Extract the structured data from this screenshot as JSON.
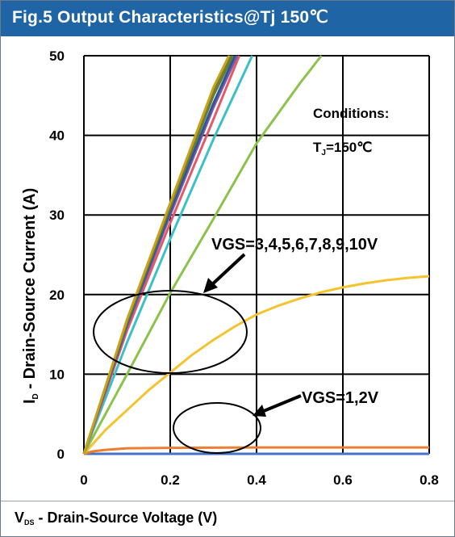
{
  "figure_title": "Fig.5 Output Characteristics@Tj 150℃",
  "chart_data": {
    "type": "line",
    "xlabel": {
      "main": "V",
      "sub": "DS",
      "rest": " - Drain-Source Voltage (V)"
    },
    "ylabel": {
      "main": "I",
      "sub": "D",
      "rest": " - Drain-Source Current (A)"
    },
    "xlim": [
      0,
      0.8
    ],
    "ylim": [
      0,
      50
    ],
    "x_ticks": [
      "0",
      "0.2",
      "0.4",
      "0.6",
      "0.8"
    ],
    "y_ticks": [
      "0",
      "10",
      "20",
      "30",
      "40",
      "50"
    ],
    "grid": true,
    "series": [
      {
        "color": "#4472c4",
        "x": [
          0,
          0.8
        ],
        "y": [
          0,
          0
        ]
      },
      {
        "color": "#ed7d31",
        "x": [
          0,
          0.02,
          0.05,
          0.1,
          0.2,
          0.4,
          0.8
        ],
        "y": [
          0,
          0.3,
          0.5,
          0.7,
          0.75,
          0.8,
          0.8
        ]
      },
      {
        "color": "#f4c430",
        "x": [
          0,
          0.05,
          0.1,
          0.15,
          0.2,
          0.25,
          0.3,
          0.35,
          0.4,
          0.45,
          0.5,
          0.55,
          0.6,
          0.65,
          0.7,
          0.75,
          0.8
        ],
        "y": [
          0,
          3,
          5.5,
          8,
          10.2,
          12.4,
          14.3,
          16,
          17.5,
          18.6,
          19.5,
          20.3,
          20.9,
          21.4,
          21.8,
          22.1,
          22.3
        ]
      },
      {
        "color": "#8bc34a",
        "x": [
          0,
          0.1,
          0.2,
          0.3,
          0.4,
          0.5,
          0.55
        ],
        "y": [
          0,
          10,
          20.2,
          29.5,
          39,
          46.5,
          50
        ]
      },
      {
        "color": "#3cc0c8",
        "x": [
          0,
          0.1,
          0.2,
          0.3,
          0.39
        ],
        "y": [
          0,
          14,
          27,
          39.5,
          50
        ]
      },
      {
        "color": "#e05a6a",
        "x": [
          0,
          0.1,
          0.2,
          0.3,
          0.36
        ],
        "y": [
          0,
          15.5,
          29,
          42,
          50
        ]
      },
      {
        "color": "#7b5aa6",
        "x": [
          0,
          0.1,
          0.2,
          0.3,
          0.355
        ],
        "y": [
          0,
          16,
          30,
          43.5,
          50
        ]
      },
      {
        "color": "#2f5597",
        "x": [
          0,
          0.1,
          0.2,
          0.3,
          0.35
        ],
        "y": [
          0,
          16.3,
          30.5,
          44,
          50
        ]
      },
      {
        "color": "#548235",
        "x": [
          0,
          0.1,
          0.2,
          0.3,
          0.345
        ],
        "y": [
          0,
          16.5,
          31,
          45,
          50
        ]
      },
      {
        "color": "#9e6a38",
        "x": [
          0,
          0.1,
          0.2,
          0.3,
          0.34
        ],
        "y": [
          0,
          16.7,
          31.2,
          45.5,
          50
        ]
      },
      {
        "color": "#4d8a2a",
        "x": [
          0,
          0.1,
          0.2,
          0.3,
          0.338
        ],
        "y": [
          0,
          16.8,
          31.4,
          45.8,
          50
        ]
      },
      {
        "color": "#c9a21a",
        "x": [
          0,
          0.1,
          0.2,
          0.3,
          0.336
        ],
        "y": [
          0,
          16.9,
          31.5,
          46,
          50
        ]
      }
    ],
    "annotations": [
      {
        "text": "VGS=3,4,5,6,7,8,9,10V"
      },
      {
        "text": "VGS=1,2V"
      }
    ],
    "conditions": {
      "title": "Conditions:",
      "main": "T",
      "sub": "J",
      "rest": "=150℃"
    }
  }
}
